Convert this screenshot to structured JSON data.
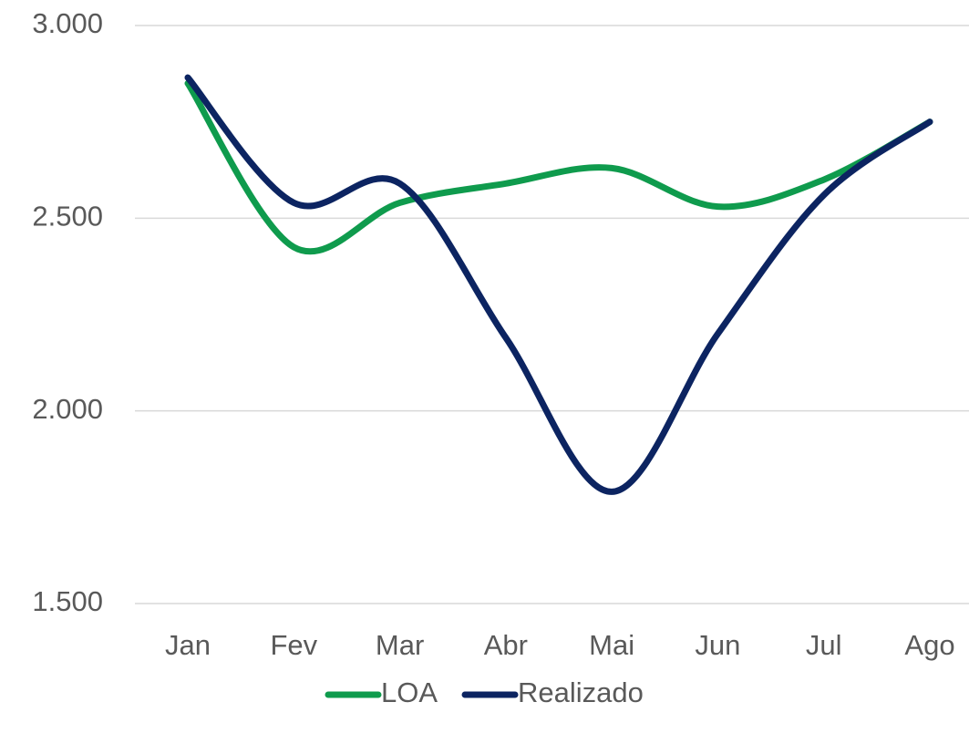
{
  "chart_data": {
    "type": "line",
    "categories": [
      "Jan",
      "Fev",
      "Mar",
      "Abr",
      "Mai",
      "Jun",
      "Jul",
      "Ago"
    ],
    "series": [
      {
        "name": "LOA",
        "color": "#0f9b4d",
        "values": [
          2850,
          2425,
          2540,
          2590,
          2630,
          2530,
          2600,
          2750
        ]
      },
      {
        "name": "Realizado",
        "color": "#0c2461",
        "values": [
          2865,
          2540,
          2590,
          2190,
          1790,
          2200,
          2560,
          2750
        ]
      }
    ],
    "ylim": [
      1500,
      3000
    ],
    "yticks": [
      {
        "value": 1500,
        "label": "1.500"
      },
      {
        "value": 2000,
        "label": "2.000"
      },
      {
        "value": 2500,
        "label": "2.500"
      },
      {
        "value": 3000,
        "label": "3.000"
      }
    ],
    "grid": true,
    "smooth": true,
    "legend": "bottom"
  }
}
